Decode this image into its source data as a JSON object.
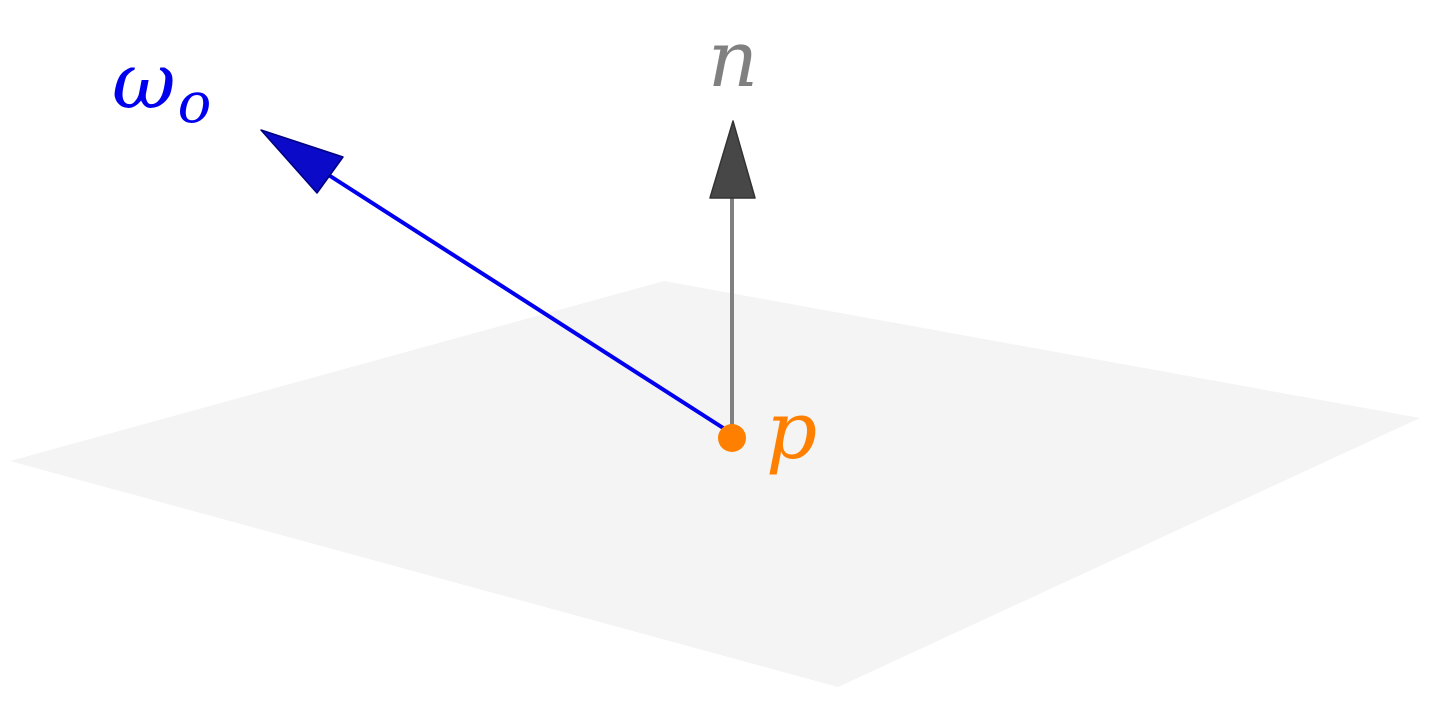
{
  "diagram": {
    "labels": {
      "outgoing_direction": "ω",
      "outgoing_direction_subscript": "o",
      "normal": "n",
      "point": "p"
    },
    "colors": {
      "background": "#ffffff",
      "surface": "#f4f4f4",
      "outgoing_direction": "#0000ee",
      "outgoing_arrowhead": "#0a0ac8",
      "normal_shaft": "#808080",
      "normal_arrowhead": "#474747",
      "normal_label": "#808080",
      "point": "#ff8000"
    }
  }
}
